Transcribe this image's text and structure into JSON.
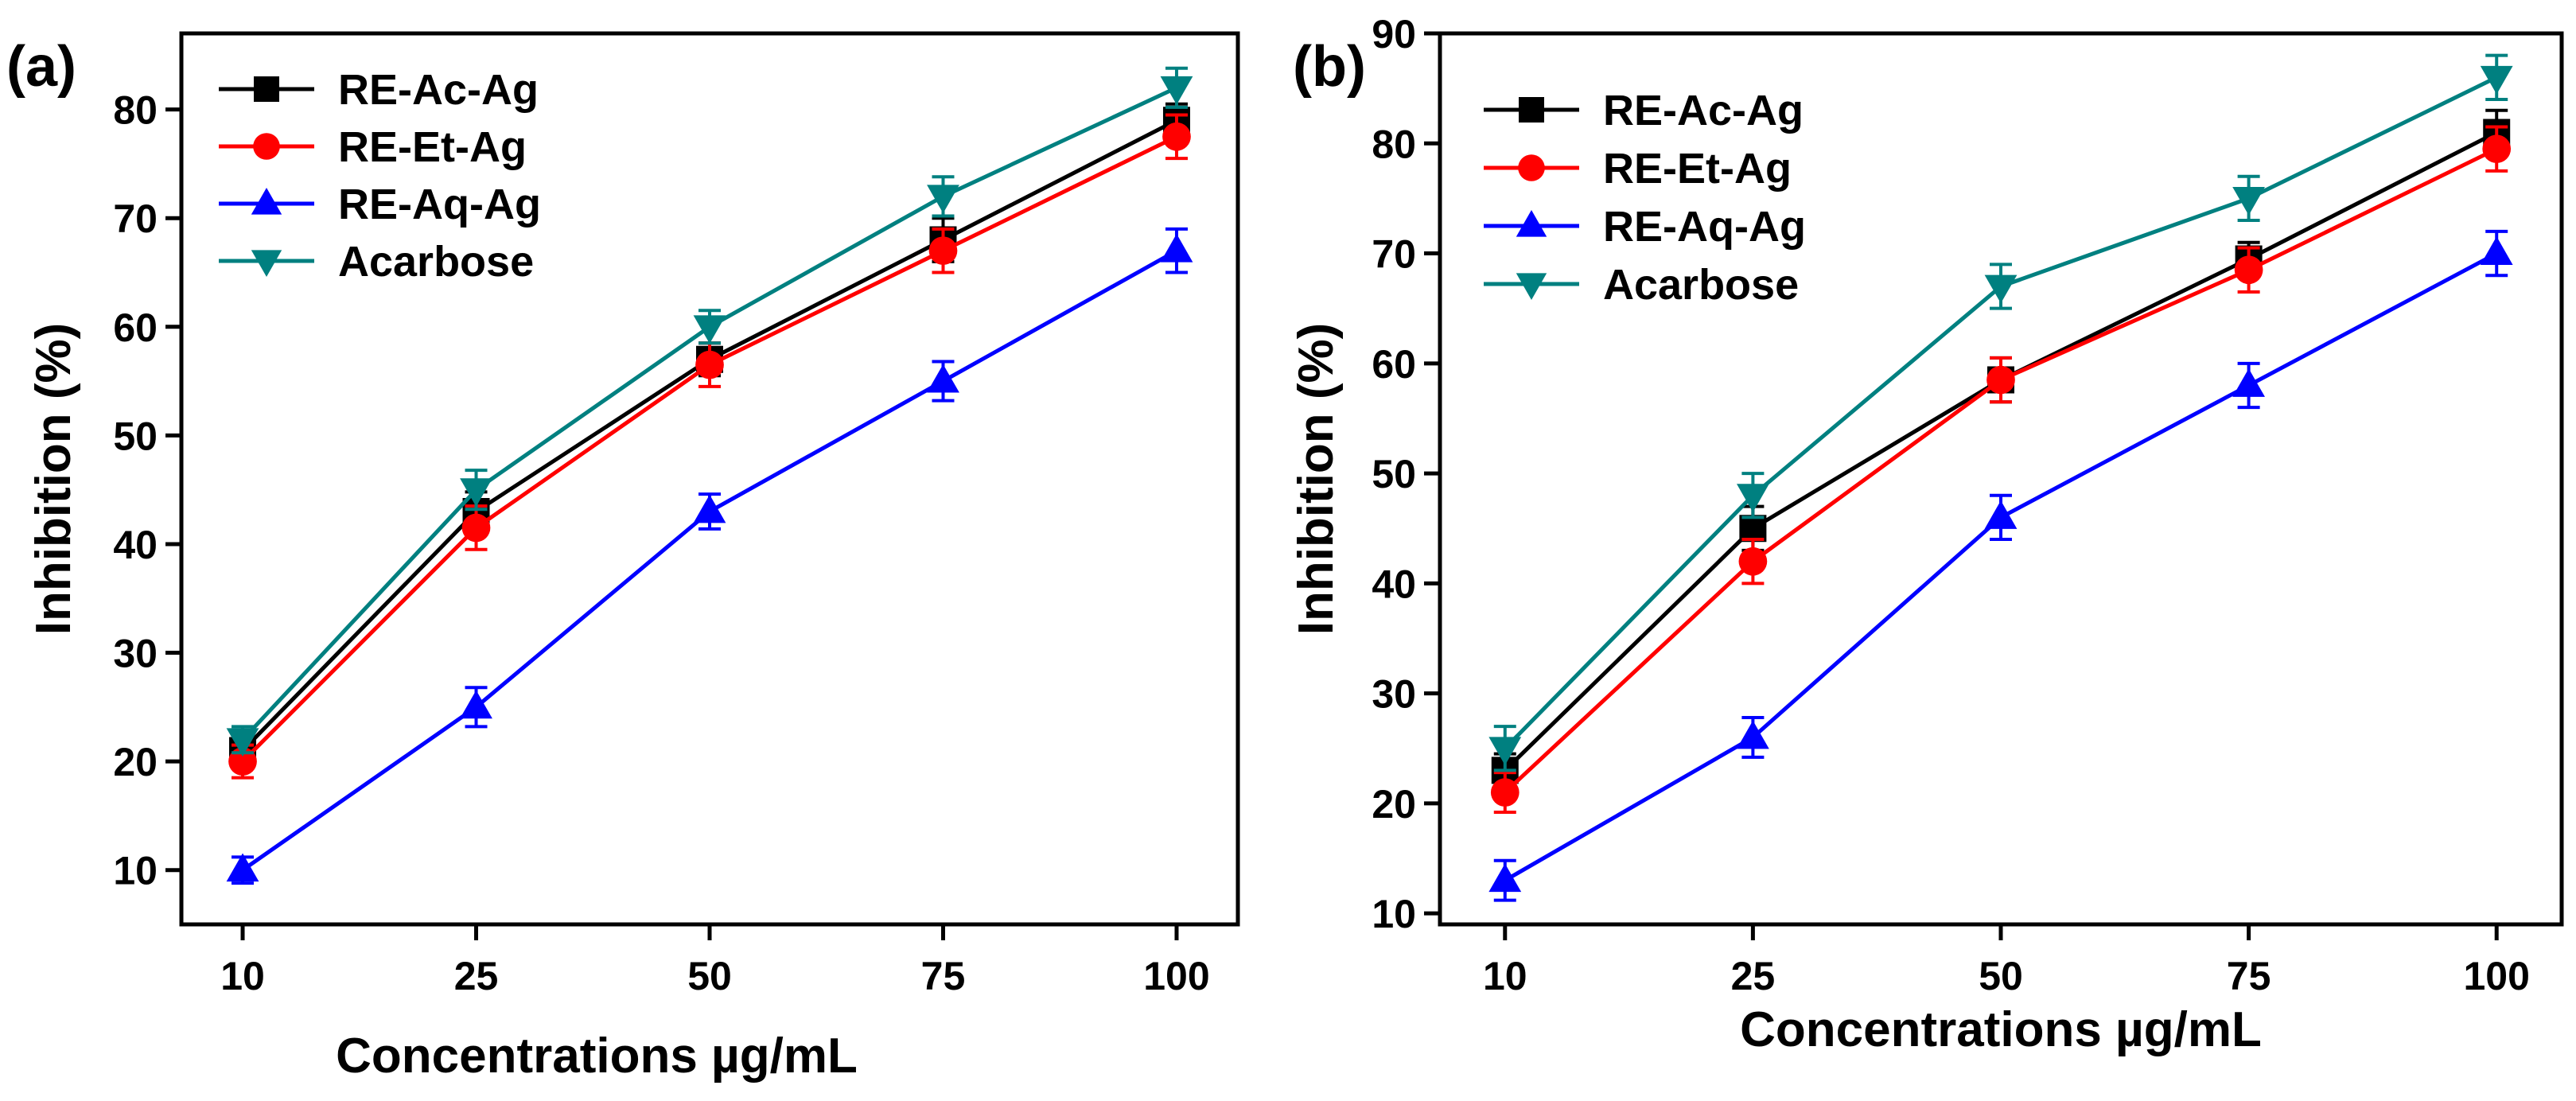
{
  "chart_data": [
    {
      "type": "line",
      "panel_label": "(a)",
      "xlabel": "Concentrations µg/mL",
      "ylabel": "Inhibition (%)",
      "categories": [
        "10",
        "25",
        "50",
        "75",
        "100"
      ],
      "ylim": [
        5,
        87
      ],
      "yticks": [
        10,
        20,
        30,
        40,
        50,
        60,
        70,
        80
      ],
      "legend_position": "top-left",
      "series": [
        {
          "name": "RE-Ac-Ag",
          "color": "#000000",
          "marker": "square",
          "values": [
            21,
            43,
            57,
            68,
            79
          ],
          "errors": [
            1.5,
            1.8,
            1.5,
            2,
            1.5
          ]
        },
        {
          "name": "RE-Et-Ag",
          "color": "#ff0000",
          "marker": "circle",
          "values": [
            20,
            41.5,
            56.5,
            67,
            77.5
          ],
          "errors": [
            1.5,
            2,
            2,
            2,
            2
          ]
        },
        {
          "name": "RE-Aq-Ag",
          "color": "#0000ff",
          "marker": "triangle-up",
          "values": [
            10,
            25,
            43,
            55,
            67
          ],
          "errors": [
            1.2,
            1.8,
            1.6,
            1.8,
            2
          ]
        },
        {
          "name": "Acarbose",
          "color": "#008080",
          "marker": "triangle-down",
          "values": [
            22,
            45,
            60,
            72,
            82
          ],
          "errors": [
            1.2,
            1.8,
            1.5,
            1.8,
            1.8
          ]
        }
      ]
    },
    {
      "type": "line",
      "panel_label": "(b)",
      "xlabel": "Concentrations µg/mL",
      "ylabel": "Inhibition (%)",
      "categories": [
        "10",
        "25",
        "50",
        "75",
        "100"
      ],
      "ylim": [
        9,
        90
      ],
      "yticks": [
        10,
        20,
        30,
        40,
        50,
        60,
        70,
        80,
        90
      ],
      "legend_position": "top-left",
      "series": [
        {
          "name": "RE-Ac-Ag",
          "color": "#000000",
          "marker": "square",
          "values": [
            23,
            45,
            58.5,
            69.5,
            81
          ],
          "errors": [
            1.5,
            2,
            2,
            1.5,
            2
          ]
        },
        {
          "name": "RE-Et-Ag",
          "color": "#ff0000",
          "marker": "circle",
          "values": [
            21,
            42,
            58.5,
            68.5,
            79.5
          ],
          "errors": [
            1.8,
            2,
            2,
            2,
            2
          ]
        },
        {
          "name": "RE-Aq-Ag",
          "color": "#0000ff",
          "marker": "triangle-up",
          "values": [
            13,
            26,
            46,
            58,
            70
          ],
          "errors": [
            1.8,
            1.8,
            2,
            2,
            2
          ]
        },
        {
          "name": "Acarbose",
          "color": "#008080",
          "marker": "triangle-down",
          "values": [
            25,
            48,
            67,
            75,
            86
          ],
          "errors": [
            2,
            2,
            2,
            2,
            2
          ]
        }
      ]
    }
  ]
}
